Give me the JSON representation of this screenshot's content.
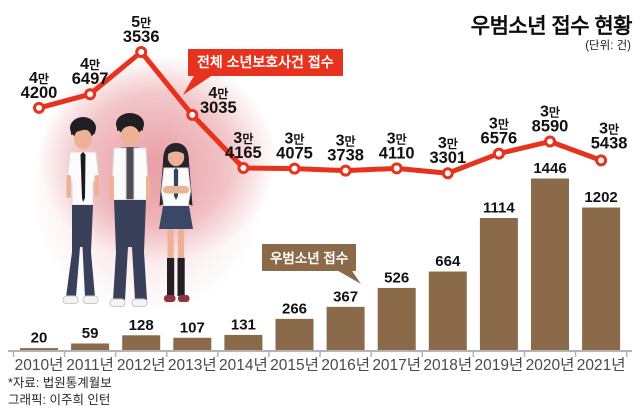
{
  "title": "우범소년 접수 현황",
  "unit_label": "(단위: 건)",
  "callouts": {
    "line": "전체 소년보호사건 접수",
    "bar": "우범소년 접수"
  },
  "footer": {
    "source": "*자료: 법원통계월보",
    "credit": "그래픽: 이주희 인턴"
  },
  "colors": {
    "line_red": "#e7321d",
    "bar_brown": "#8a6a48",
    "axis_gray": "#b3b3b3",
    "year_label_gray": "#4a4a4a",
    "value_label_black": "#111111",
    "callout_text_white": "#ffffff",
    "glow_pink": "#d9404a"
  },
  "chart_data": {
    "type": "combo",
    "categories": [
      "2010년",
      "2011년",
      "2012년",
      "2013년",
      "2014년",
      "2015년",
      "2016년",
      "2017년",
      "2018년",
      "2019년",
      "2020년",
      "2021년"
    ],
    "series": [
      {
        "name": "전체 소년보호사건 접수",
        "type": "line",
        "values": [
          44200,
          46497,
          53536,
          43035,
          34165,
          34075,
          33738,
          34110,
          33301,
          36576,
          38590,
          35438
        ],
        "point_labels": [
          "4만4200",
          "4만6497",
          "5만3536",
          "4만3035",
          "3만4165",
          "3만4075",
          "3만3738",
          "3만4110",
          "3만3301",
          "3만6576",
          "3만8590",
          "3만5438"
        ]
      },
      {
        "name": "우범소년 접수",
        "type": "bar",
        "values": [
          20,
          59,
          128,
          107,
          131,
          266,
          367,
          526,
          664,
          1114,
          1446,
          1202
        ]
      }
    ],
    "grid": false,
    "legend_position": "callouts",
    "ylim_line": [
      33301,
      53536
    ],
    "ylim_bar": [
      0,
      1446
    ]
  }
}
